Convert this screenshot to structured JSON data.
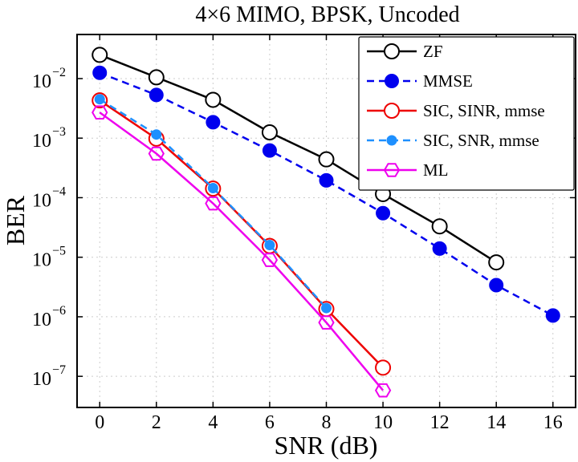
{
  "chart_data": {
    "type": "line",
    "title": "4×6 MIMO, BPSK, Uncoded",
    "xlabel": "SNR (dB)",
    "ylabel": "BER",
    "xlim": [
      -0.8,
      16.8
    ],
    "ylim": [
      3e-08,
      0.055
    ],
    "y_scale": "log",
    "grid": true,
    "legend_position": "top-right",
    "x_ticks": [
      0,
      2,
      4,
      6,
      8,
      10,
      12,
      14,
      16
    ],
    "x_tick_labels": [
      "0",
      "2",
      "4",
      "6",
      "8",
      "10",
      "12",
      "14",
      "16"
    ],
    "y_ticks": [
      {
        "value": 1e-07,
        "base": "10",
        "exp": "−7"
      },
      {
        "value": 1e-06,
        "base": "10",
        "exp": "−6"
      },
      {
        "value": 1e-05,
        "base": "10",
        "exp": "−5"
      },
      {
        "value": 0.0001,
        "base": "10",
        "exp": "−4"
      },
      {
        "value": 0.001,
        "base": "10",
        "exp": "−3"
      },
      {
        "value": 0.01,
        "base": "10",
        "exp": "−2"
      }
    ],
    "series": [
      {
        "name": "ZF",
        "color": "#000000",
        "dash": "",
        "marker": "open-circle",
        "marker_color": "#000000",
        "x": [
          0,
          2,
          4,
          6,
          8,
          10,
          12,
          14
        ],
        "y": [
          0.025,
          0.0105,
          0.0044,
          0.00125,
          0.00044,
          0.000115,
          3.3e-05,
          8.2e-06
        ]
      },
      {
        "name": "MMSE",
        "color": "#0000ee",
        "dash": "9 6",
        "marker": "filled-circle",
        "marker_color": "#0000ee",
        "x": [
          0,
          2,
          4,
          6,
          8,
          10,
          12,
          14,
          16
        ],
        "y": [
          0.0125,
          0.0053,
          0.00185,
          0.00062,
          0.000195,
          5.5e-05,
          1.4e-05,
          3.4e-06,
          1.05e-06
        ]
      },
      {
        "name": "SIC, SINR, mmse",
        "color": "#ee0000",
        "dash": "",
        "marker": "open-circle",
        "marker_color": "#ee0000",
        "x": [
          0,
          2,
          4,
          6,
          8,
          10
        ],
        "y": [
          0.0043,
          0.00098,
          0.000142,
          1.55e-05,
          1.35e-06,
          1.4e-07
        ]
      },
      {
        "name": "SIC, SNR, mmse",
        "color": "#1e90ff",
        "dash": "9 6",
        "marker": "small-filled-circle",
        "marker_color": "#1e90ff",
        "x": [
          0,
          2,
          4,
          6,
          8
        ],
        "y": [
          0.0045,
          0.00115,
          0.000145,
          1.6e-05,
          1.4e-06
        ]
      },
      {
        "name": "ML",
        "color": "#ee00ee",
        "dash": "",
        "marker": "open-hexagon",
        "marker_color": "#ee00ee",
        "x": [
          0,
          2,
          4,
          6,
          8,
          10
        ],
        "y": [
          0.0027,
          0.00055,
          8e-05,
          9e-06,
          8e-07,
          5.8e-08
        ]
      }
    ]
  }
}
